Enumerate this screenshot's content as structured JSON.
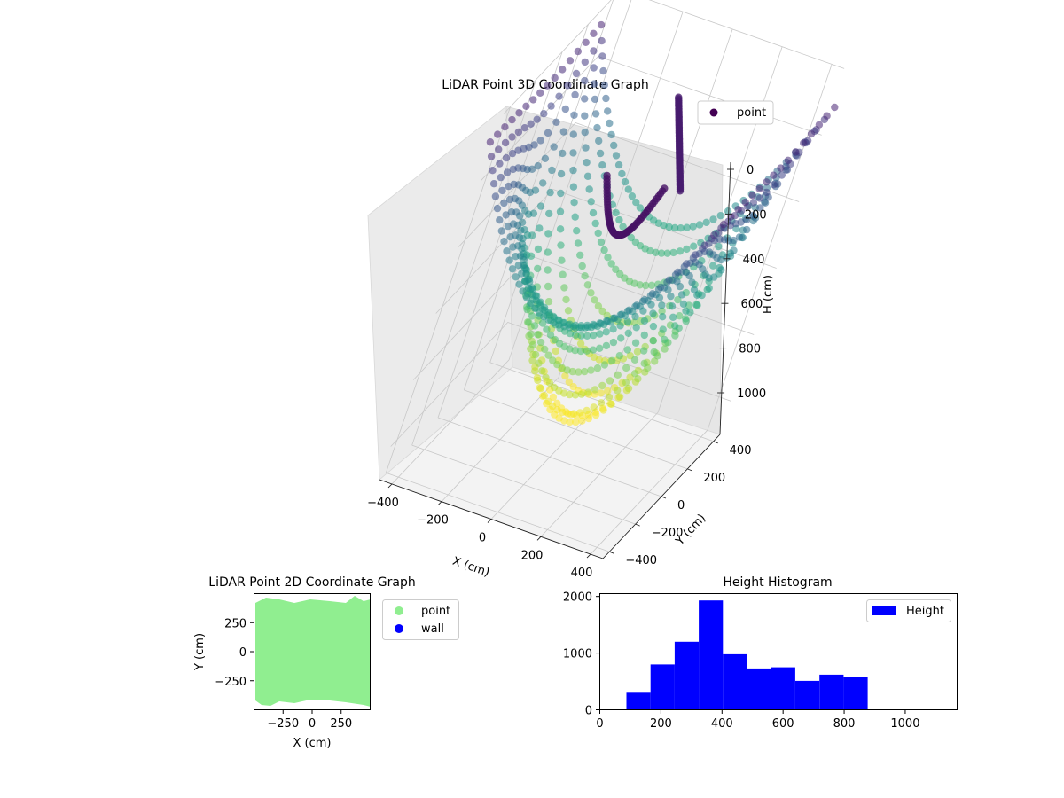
{
  "chart_data": [
    {
      "type": "scatter",
      "projection": "3d",
      "title": "LiDAR Point 3D Coordinate Graph",
      "xlabel": "X (cm)",
      "ylabel": "Y (cm)",
      "zlabel": "H (cm)",
      "xticks": [
        "−400",
        "−200",
        "0",
        "200",
        "400"
      ],
      "yticks": [
        "−400",
        "−200",
        "0",
        "200",
        "400"
      ],
      "zticks": [
        "0",
        "200",
        "400",
        "600",
        "800",
        "1000"
      ],
      "xlim": [
        -450,
        450
      ],
      "ylim": [
        -450,
        450
      ],
      "zlim": [
        0,
        1100
      ],
      "z_inverted": true,
      "colormap": "viridis",
      "legend": {
        "entries": [
          "point"
        ],
        "location": "top-right"
      },
      "series": [
        {
          "name": "point",
          "color": "#440154"
        }
      ],
      "grid": true
    },
    {
      "type": "scatter",
      "title": "LiDAR Point 2D Coordinate Graph",
      "xlabel": "X (cm)",
      "ylabel": "Y (cm)",
      "xticks": [
        -250,
        0,
        250
      ],
      "yticks": [
        250,
        0,
        -250
      ],
      "xlim": [
        -500,
        500
      ],
      "ylim": [
        -500,
        500
      ],
      "legend": {
        "entries": [
          "point",
          "wall"
        ],
        "location": "outside-right"
      },
      "series": [
        {
          "name": "point",
          "color": "#90ee90"
        },
        {
          "name": "wall",
          "color": "#0000ff"
        }
      ],
      "grid": false
    },
    {
      "type": "bar",
      "title": "Height Histogram",
      "xticks": [
        0,
        200,
        400,
        600,
        800,
        1000
      ],
      "yticks": [
        0,
        1000,
        2000
      ],
      "xlim": [
        0,
        1170
      ],
      "ylim": [
        0,
        2050
      ],
      "bin_edges": [
        87,
        166,
        245,
        324,
        403,
        482,
        561,
        640,
        719,
        798,
        877,
        956,
        1035,
        1114
      ],
      "values": [
        300,
        800,
        1200,
        1930,
        980,
        730,
        750,
        510,
        620,
        580,
        0,
        0,
        0
      ],
      "color": "#0000ff",
      "legend": {
        "entries": [
          "Height"
        ],
        "location": "top-right"
      },
      "series": [
        {
          "name": "Height",
          "values": [
            300,
            800,
            1200,
            1930,
            980,
            730,
            750,
            510,
            620,
            580,
            0,
            0,
            0
          ]
        }
      ],
      "grid": false
    }
  ]
}
